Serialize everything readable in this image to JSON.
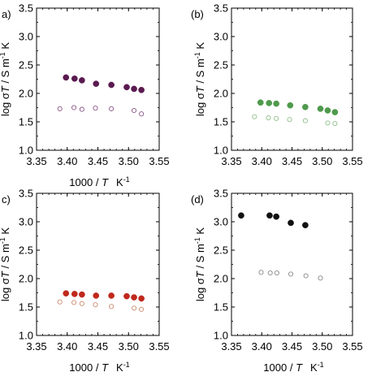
{
  "figure": {
    "x_axis_title": {
      "pre": "1000 / ",
      "var": "T",
      "unit": "K",
      "exp": "-1"
    },
    "y_axis_title": {
      "pre": "log σ",
      "var": "T",
      "mid": " / S m",
      "exp": "-1",
      "post": " K"
    }
  },
  "chart_data": [
    {
      "type": "scatter",
      "label": "a)",
      "xlim": [
        3.35,
        3.55
      ],
      "ylim": [
        1.0,
        3.5
      ],
      "x_ticks": [
        "3.35",
        "3.40",
        "3.45",
        "3.50",
        "3.55"
      ],
      "y_ticks": [
        "1.0",
        "1.5",
        "2.0",
        "2.5",
        "3.0",
        "3.5"
      ],
      "show_x_title": true,
      "show_y_title": true,
      "grid": false,
      "series": [
        {
          "filled": true,
          "color": "#5a1a50",
          "points": [
            [
              3.398,
              2.28
            ],
            [
              3.412,
              2.26
            ],
            [
              3.424,
              2.23
            ],
            [
              3.447,
              2.17
            ],
            [
              3.472,
              2.15
            ],
            [
              3.497,
              2.11
            ],
            [
              3.509,
              2.08
            ],
            [
              3.521,
              2.06
            ]
          ]
        },
        {
          "filled": false,
          "color": "#8a5585",
          "points": [
            [
              3.388,
              1.73
            ],
            [
              3.411,
              1.75
            ],
            [
              3.424,
              1.72
            ],
            [
              3.446,
              1.74
            ],
            [
              3.472,
              1.73
            ],
            [
              3.509,
              1.7
            ],
            [
              3.521,
              1.64
            ]
          ]
        }
      ]
    },
    {
      "type": "scatter",
      "label": "(b)",
      "xlim": [
        3.35,
        3.55
      ],
      "ylim": [
        1.0,
        3.5
      ],
      "x_ticks": [
        "3.35",
        "3.40",
        "3.45",
        "3.50",
        "3.55"
      ],
      "y_ticks": [
        "1.0",
        "1.5",
        "2.0",
        "2.5",
        "3.0",
        "3.5"
      ],
      "show_x_title": false,
      "show_y_title": true,
      "grid": false,
      "series": [
        {
          "filled": true,
          "color": "#4f9a4c",
          "points": [
            [
              3.398,
              1.84
            ],
            [
              3.412,
              1.83
            ],
            [
              3.424,
              1.82
            ],
            [
              3.447,
              1.79
            ],
            [
              3.472,
              1.76
            ],
            [
              3.497,
              1.73
            ],
            [
              3.509,
              1.7
            ],
            [
              3.521,
              1.67
            ]
          ]
        },
        {
          "filled": false,
          "color": "#8fbf8a",
          "points": [
            [
              3.388,
              1.59
            ],
            [
              3.411,
              1.57
            ],
            [
              3.424,
              1.56
            ],
            [
              3.446,
              1.54
            ],
            [
              3.472,
              1.52
            ],
            [
              3.509,
              1.48
            ],
            [
              3.521,
              1.47
            ]
          ]
        }
      ]
    },
    {
      "type": "scatter",
      "label": "c)",
      "xlim": [
        3.35,
        3.55
      ],
      "ylim": [
        1.0,
        3.5
      ],
      "x_ticks": [
        "3.35",
        "3.40",
        "3.45",
        "3.50",
        "3.55"
      ],
      "y_ticks": [
        "1.0",
        "1.5",
        "2.0",
        "2.5",
        "3.0",
        "3.5"
      ],
      "show_x_title": true,
      "show_y_title": true,
      "grid": false,
      "series": [
        {
          "filled": true,
          "color": "#c0281c",
          "points": [
            [
              3.398,
              1.74
            ],
            [
              3.412,
              1.73
            ],
            [
              3.424,
              1.72
            ],
            [
              3.447,
              1.7
            ],
            [
              3.472,
              1.7
            ],
            [
              3.497,
              1.69
            ],
            [
              3.509,
              1.67
            ],
            [
              3.521,
              1.65
            ]
          ]
        },
        {
          "filled": false,
          "color": "#c98a6e",
          "points": [
            [
              3.388,
              1.59
            ],
            [
              3.411,
              1.58
            ],
            [
              3.424,
              1.56
            ],
            [
              3.446,
              1.54
            ],
            [
              3.472,
              1.51
            ],
            [
              3.509,
              1.48
            ],
            [
              3.521,
              1.46
            ]
          ]
        }
      ]
    },
    {
      "type": "scatter",
      "label": "(d)",
      "xlim": [
        3.35,
        3.55
      ],
      "ylim": [
        1.0,
        3.5
      ],
      "x_ticks": [
        "3.35",
        "3.40",
        "3.45",
        "3.50",
        "3.55"
      ],
      "y_ticks": [
        "1.0",
        "1.5",
        "2.0",
        "2.5",
        "3.0",
        "3.5"
      ],
      "show_x_title": true,
      "show_y_title": true,
      "grid": false,
      "series": [
        {
          "filled": true,
          "color": "#111111",
          "points": [
            [
              3.366,
              3.11
            ],
            [
              3.413,
              3.11
            ],
            [
              3.424,
              3.09
            ],
            [
              3.448,
              2.98
            ],
            [
              3.472,
              2.94
            ]
          ]
        },
        {
          "filled": false,
          "color": "#888888",
          "points": [
            [
              3.399,
              2.11
            ],
            [
              3.414,
              2.1
            ],
            [
              3.425,
              2.1
            ],
            [
              3.448,
              2.08
            ],
            [
              3.473,
              2.05
            ],
            [
              3.497,
              2.01
            ]
          ]
        }
      ]
    }
  ]
}
